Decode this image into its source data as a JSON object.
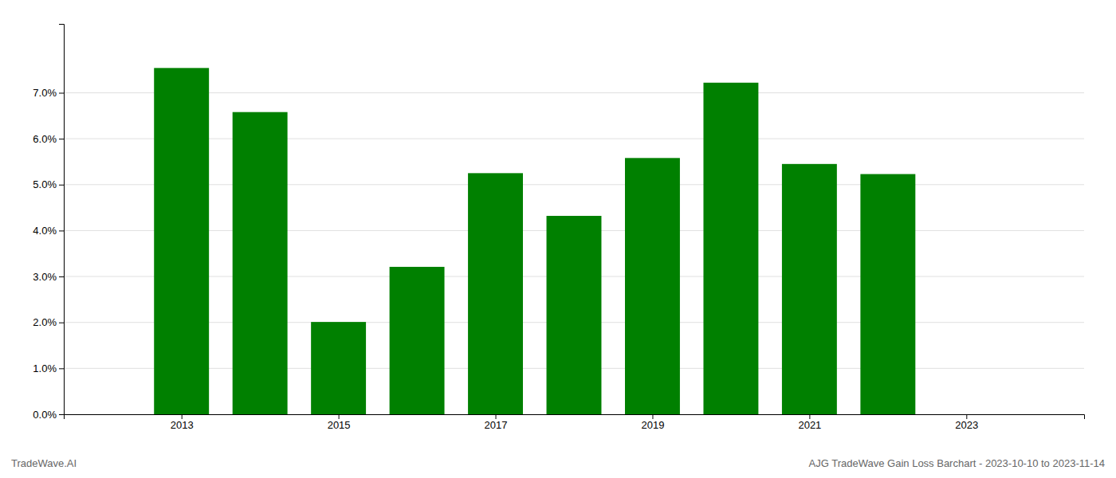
{
  "chart_data": {
    "type": "bar",
    "x": [
      2013,
      2014,
      2015,
      2016,
      2017,
      2018,
      2019,
      2020,
      2021,
      2022
    ],
    "values": [
      0.0754,
      0.0658,
      0.0201,
      0.0321,
      0.0525,
      0.0432,
      0.0558,
      0.0722,
      0.0545,
      0.0523
    ],
    "color": "#008000",
    "xlim": [
      2011.5,
      2024.5
    ],
    "xticks": [
      2013,
      2015,
      2017,
      2019,
      2021,
      2023
    ],
    "ylim": [
      0,
      0.085
    ],
    "yticks": [
      {
        "value": 0.0,
        "label": "0.0%"
      },
      {
        "value": 0.01,
        "label": "1.0%"
      },
      {
        "value": 0.02,
        "label": "2.0%"
      },
      {
        "value": 0.03,
        "label": "3.0%"
      },
      {
        "value": 0.04,
        "label": "4.0%"
      },
      {
        "value": 0.05,
        "label": "5.0%"
      },
      {
        "value": 0.06,
        "label": "6.0%"
      },
      {
        "value": 0.07,
        "label": "7.0%"
      }
    ],
    "grid": true,
    "annotations": [
      "TradeWave.AI",
      "AJG TradeWave Gain Loss Barchart - 2023-10-10 to 2023-11-14"
    ]
  }
}
